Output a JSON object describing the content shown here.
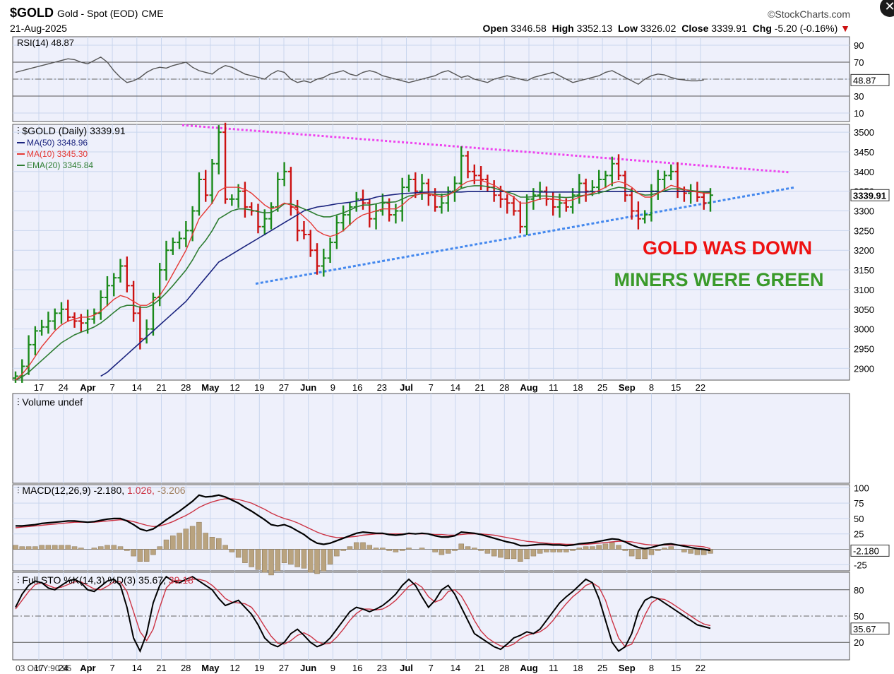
{
  "header": {
    "symbol": "$GOLD",
    "name": "Gold - Spot (EOD)",
    "exchange": "CME",
    "date": "21-Aug-2025",
    "brand": "©StockCharts.com",
    "open_label": "Open",
    "open": "3346.58",
    "high_label": "High",
    "high": "3352.13",
    "low_label": "Low",
    "low": "3326.02",
    "close_label": "Close",
    "close": "3339.91",
    "chg_label": "Chg",
    "chg": "-5.20 (-0.16%)"
  },
  "annotations": {
    "line1": "GOLD WAS DOWN",
    "line2": "MINERS WERE GREEN"
  },
  "bottom_note": "03 Oct Y:90.95",
  "colors": {
    "panel_bg": "#eef0fb",
    "up": "#1a8a1a",
    "down": "#cc1111",
    "ma50": "#1a237e",
    "ma10": "#e53935",
    "ema20": "#2e7d32",
    "resistance": "#ee44ee",
    "support": "#4488ee",
    "ann1": "#ee1111",
    "ann2": "#3a9a2a"
  },
  "chart_data": [
    {
      "type": "line",
      "panel": "rsi",
      "legend": "RSI(14) 48.87",
      "current_label": "48.87",
      "ylim": [
        0,
        100
      ],
      "yticks": [
        "90",
        "70",
        "50",
        "30",
        "10"
      ],
      "values": [
        58,
        60,
        62,
        64,
        66,
        68,
        70,
        72,
        74,
        73,
        70,
        68,
        72,
        76,
        70,
        60,
        52,
        46,
        48,
        52,
        58,
        62,
        64,
        63,
        66,
        68,
        70,
        64,
        60,
        58,
        56,
        62,
        66,
        64,
        60,
        56,
        54,
        52,
        50,
        56,
        60,
        58,
        50,
        46,
        48,
        46,
        50,
        52,
        56,
        58,
        60,
        56,
        54,
        58,
        60,
        58,
        54,
        52,
        50,
        48,
        46,
        48,
        50,
        52,
        54,
        58,
        60,
        56,
        52,
        54,
        50,
        48,
        46,
        50,
        52,
        54,
        52,
        50,
        48,
        52,
        54,
        56,
        58,
        54,
        50,
        46,
        48,
        50,
        52,
        54,
        58,
        60,
        56,
        52,
        48,
        44,
        50,
        54,
        56,
        55,
        52,
        50,
        49,
        48,
        48,
        49
      ]
    },
    {
      "type": "line",
      "panel": "price",
      "legend_title": "$GOLD (Daily) 3339.91",
      "legend_ma50": "MA(50) 3348.96",
      "legend_ma10": "MA(10) 3345.30",
      "legend_ema20": "EMA(20) 3345.84",
      "current_label": "3339.91",
      "ylim": [
        2870,
        3520
      ],
      "yticks": [
        "3500",
        "3450",
        "3400",
        "3350",
        "3300",
        "3250",
        "3200",
        "3150",
        "3100",
        "3050",
        "3000",
        "2950",
        "2900"
      ],
      "xticks": [
        "17",
        "24",
        "Apr",
        "7",
        "14",
        "21",
        "28",
        "May",
        "12",
        "19",
        "27",
        "Jun",
        "9",
        "16",
        "23",
        "Jul",
        "7",
        "14",
        "21",
        "28",
        "Aug",
        "11",
        "18",
        "25",
        "Sep",
        "8",
        "15",
        "22"
      ],
      "close": [
        2880,
        2905,
        2960,
        2995,
        3005,
        3020,
        3040,
        3050,
        3030,
        3020,
        3015,
        3025,
        3040,
        3080,
        3110,
        3130,
        3160,
        3110,
        3040,
        2975,
        3000,
        3080,
        3150,
        3200,
        3220,
        3230,
        3250,
        3300,
        3380,
        3340,
        3420,
        3500,
        3330,
        3330,
        3350,
        3310,
        3300,
        3260,
        3280,
        3310,
        3380,
        3400,
        3310,
        3250,
        3240,
        3200,
        3160,
        3180,
        3220,
        3270,
        3290,
        3310,
        3330,
        3320,
        3280,
        3300,
        3320,
        3290,
        3300,
        3360,
        3380,
        3350,
        3370,
        3340,
        3310,
        3320,
        3350,
        3370,
        3440,
        3400,
        3390,
        3380,
        3360,
        3340,
        3330,
        3320,
        3300,
        3260,
        3330,
        3340,
        3350,
        3330,
        3310,
        3320,
        3310,
        3340,
        3370,
        3350,
        3360,
        3380,
        3390,
        3420,
        3390,
        3340,
        3300,
        3280,
        3290,
        3350,
        3380,
        3390,
        3400,
        3350,
        3345,
        3350,
        3335,
        3320,
        3340
      ],
      "ma50": [
        null,
        null,
        null,
        null,
        null,
        null,
        null,
        null,
        null,
        null,
        null,
        null,
        null,
        2880,
        2890,
        2905,
        2920,
        2935,
        2950,
        2965,
        2980,
        2995,
        3010,
        3025,
        3040,
        3055,
        3070,
        3090,
        3110,
        3130,
        3150,
        3170,
        3180,
        3190,
        3200,
        3210,
        3220,
        3230,
        3240,
        3250,
        3260,
        3270,
        3280,
        3290,
        3300,
        3305,
        3310,
        3312,
        3315,
        3318,
        3320,
        3322,
        3325,
        3328,
        3330,
        3335,
        3338,
        3340,
        3342,
        3344,
        3345,
        3346,
        3347,
        3348,
        3348,
        3348,
        3348,
        3348,
        3348,
        3349,
        3349,
        3349,
        3349,
        3349,
        3349,
        3349,
        3349,
        3349,
        3349,
        3349,
        3348,
        3348,
        3348,
        3348,
        3348,
        3348,
        3348,
        3348,
        3349,
        3349,
        3349,
        3349,
        3349,
        3349,
        3349,
        3349,
        3349,
        3349,
        3349,
        3349,
        3349,
        3349,
        3349,
        3349,
        3349,
        3349,
        3349
      ],
      "ma10": [
        2870,
        2885,
        2905,
        2930,
        2955,
        2975,
        2995,
        3010,
        3020,
        3025,
        3030,
        3030,
        3035,
        3045,
        3060,
        3075,
        3085,
        3080,
        3070,
        3060,
        3060,
        3070,
        3085,
        3110,
        3140,
        3170,
        3200,
        3240,
        3280,
        3300,
        3320,
        3350,
        3360,
        3360,
        3360,
        3355,
        3345,
        3330,
        3315,
        3305,
        3310,
        3320,
        3315,
        3300,
        3285,
        3270,
        3250,
        3240,
        3235,
        3240,
        3250,
        3265,
        3280,
        3290,
        3295,
        3300,
        3305,
        3305,
        3305,
        3315,
        3330,
        3340,
        3345,
        3345,
        3340,
        3335,
        3340,
        3350,
        3365,
        3375,
        3378,
        3378,
        3372,
        3365,
        3355,
        3345,
        3335,
        3320,
        3320,
        3325,
        3330,
        3332,
        3330,
        3328,
        3325,
        3328,
        3335,
        3340,
        3345,
        3352,
        3360,
        3370,
        3375,
        3370,
        3360,
        3345,
        3335,
        3335,
        3345,
        3355,
        3365,
        3360,
        3355,
        3350,
        3348,
        3345,
        3345
      ],
      "ema20": [
        2870,
        2878,
        2890,
        2905,
        2920,
        2935,
        2950,
        2965,
        2975,
        2985,
        2992,
        2998,
        3005,
        3015,
        3028,
        3042,
        3055,
        3060,
        3060,
        3055,
        3055,
        3062,
        3075,
        3092,
        3110,
        3130,
        3150,
        3175,
        3205,
        3225,
        3250,
        3280,
        3290,
        3300,
        3305,
        3305,
        3302,
        3298,
        3295,
        3296,
        3305,
        3318,
        3318,
        3312,
        3305,
        3298,
        3290,
        3285,
        3285,
        3290,
        3295,
        3302,
        3310,
        3315,
        3315,
        3318,
        3322,
        3322,
        3323,
        3330,
        3338,
        3340,
        3344,
        3344,
        3342,
        3341,
        3343,
        3348,
        3357,
        3362,
        3364,
        3364,
        3362,
        3358,
        3353,
        3348,
        3343,
        3335,
        3335,
        3336,
        3338,
        3338,
        3336,
        3335,
        3334,
        3335,
        3338,
        3340,
        3342,
        3346,
        3350,
        3356,
        3360,
        3358,
        3352,
        3345,
        3340,
        3341,
        3346,
        3351,
        3356,
        3356,
        3354,
        3352,
        3350,
        3348,
        3346
      ]
    },
    {
      "type": "bar",
      "panel": "volume",
      "legend": "Volume undef"
    },
    {
      "type": "line",
      "panel": "macd",
      "legend_a": "MACD(12,26,9) -2.180",
      "legend_b": "1.026",
      "legend_c": "-3.206",
      "current_label": "-2.180",
      "ylim": [
        -35,
        105
      ],
      "yticks": [
        "100",
        "75",
        "50",
        "25",
        "-25"
      ],
      "macd": [
        38,
        38,
        39,
        40,
        42,
        43,
        44,
        45,
        46,
        46,
        45,
        44,
        45,
        47,
        49,
        50,
        50,
        46,
        40,
        33,
        30,
        33,
        40,
        48,
        55,
        62,
        70,
        78,
        88,
        85,
        86,
        88,
        85,
        80,
        75,
        68,
        62,
        55,
        48,
        40,
        38,
        40,
        36,
        30,
        24,
        16,
        10,
        8,
        10,
        14,
        18,
        22,
        26,
        28,
        27,
        26,
        26,
        24,
        23,
        24,
        26,
        25,
        26,
        25,
        22,
        20,
        20,
        22,
        28,
        27,
        26,
        24,
        21,
        18,
        15,
        12,
        10,
        6,
        6,
        7,
        8,
        8,
        7,
        7,
        6,
        7,
        9,
        10,
        11,
        13,
        15,
        17,
        16,
        12,
        7,
        3,
        1,
        3,
        6,
        8,
        9,
        7,
        5,
        3,
        1,
        0,
        -2
      ],
      "signal": [
        35,
        36,
        37,
        38,
        39,
        40,
        41,
        42,
        43,
        44,
        44,
        44,
        44,
        45,
        46,
        47,
        48,
        47,
        45,
        42,
        39,
        37,
        38,
        41,
        45,
        50,
        55,
        61,
        68,
        73,
        77,
        80,
        82,
        82,
        81,
        78,
        75,
        70,
        65,
        59,
        54,
        50,
        47,
        43,
        38,
        33,
        28,
        24,
        21,
        19,
        19,
        20,
        21,
        23,
        24,
        25,
        25,
        25,
        25,
        25,
        25,
        25,
        25,
        25,
        24,
        24,
        23,
        23,
        24,
        25,
        25,
        25,
        24,
        23,
        21,
        19,
        17,
        15,
        13,
        12,
        11,
        10,
        9,
        9,
        8,
        8,
        8,
        8,
        9,
        10,
        11,
        12,
        13,
        13,
        12,
        10,
        8,
        7,
        7,
        7,
        7,
        7,
        7,
        6,
        5,
        4,
        1
      ]
    },
    {
      "type": "line",
      "panel": "sto",
      "legend_a": "Full STO %K(14,3) %D(3) 35.67",
      "legend_b": "39.18",
      "current_label": "35.67",
      "ylim": [
        0,
        100
      ],
      "yticks": [
        "80",
        "50",
        "20"
      ],
      "k": [
        60,
        75,
        85,
        90,
        88,
        82,
        80,
        85,
        90,
        92,
        88,
        80,
        78,
        84,
        90,
        92,
        85,
        60,
        25,
        10,
        30,
        65,
        85,
        95,
        90,
        88,
        92,
        95,
        90,
        85,
        80,
        70,
        62,
        65,
        68,
        60,
        52,
        40,
        25,
        18,
        15,
        20,
        30,
        35,
        28,
        20,
        15,
        18,
        25,
        35,
        45,
        55,
        60,
        58,
        55,
        58,
        62,
        68,
        75,
        85,
        92,
        85,
        72,
        60,
        68,
        80,
        85,
        75,
        60,
        45,
        30,
        25,
        20,
        15,
        12,
        18,
        25,
        28,
        32,
        30,
        35,
        45,
        55,
        65,
        72,
        78,
        85,
        92,
        88,
        70,
        45,
        20,
        10,
        15,
        30,
        55,
        68,
        72,
        70,
        65,
        60,
        55,
        50,
        45,
        40,
        38,
        36
      ],
      "d": [
        58,
        68,
        78,
        86,
        88,
        85,
        82,
        83,
        86,
        89,
        89,
        85,
        81,
        80,
        84,
        89,
        89,
        78,
        55,
        32,
        22,
        35,
        60,
        82,
        90,
        91,
        90,
        92,
        92,
        90,
        85,
        78,
        70,
        66,
        65,
        64,
        60,
        50,
        38,
        27,
        19,
        18,
        22,
        28,
        31,
        27,
        21,
        18,
        19,
        26,
        35,
        45,
        53,
        58,
        58,
        57,
        58,
        62,
        68,
        76,
        84,
        88,
        83,
        72,
        66,
        69,
        78,
        80,
        73,
        60,
        45,
        33,
        25,
        20,
        16,
        15,
        18,
        24,
        28,
        30,
        32,
        37,
        45,
        55,
        64,
        72,
        78,
        85,
        88,
        83,
        68,
        45,
        25,
        15,
        18,
        33,
        51,
        65,
        70,
        69,
        65,
        60,
        55,
        50,
        45,
        41,
        39
      ]
    }
  ]
}
